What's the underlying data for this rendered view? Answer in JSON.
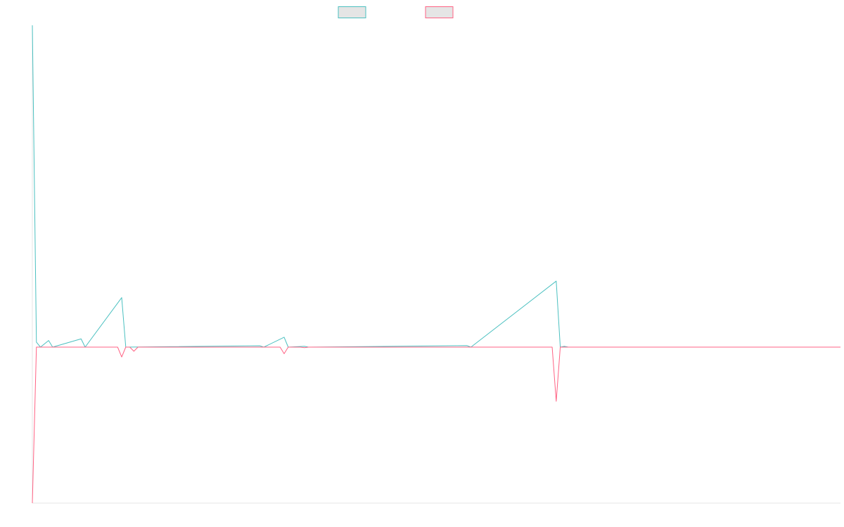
{
  "chart_data": {
    "type": "line",
    "title": "",
    "xlabel": "",
    "ylabel": "",
    "grid": false,
    "legend_position": "top-center",
    "x_count": 200,
    "ylim": [
      -9.5,
      19.5
    ],
    "series": [
      {
        "name": "",
        "color": "#4bc0c0",
        "fill": "#e5e5e5",
        "points": [
          [
            0,
            19.5
          ],
          [
            1,
            0.3
          ],
          [
            2,
            0
          ],
          [
            4,
            0.4
          ],
          [
            5,
            0
          ],
          [
            12,
            0.5
          ],
          [
            13,
            0
          ],
          [
            22,
            3.0
          ],
          [
            23,
            0
          ],
          [
            56,
            0.08
          ],
          [
            57,
            0
          ],
          [
            62,
            0.6
          ],
          [
            63,
            0
          ],
          [
            67,
            0.05
          ],
          [
            68,
            0
          ],
          [
            107,
            0.09
          ],
          [
            108,
            0
          ],
          [
            129,
            4.0
          ],
          [
            130,
            0
          ],
          [
            131,
            0.05
          ],
          [
            132,
            0
          ],
          [
            199,
            0
          ]
        ]
      },
      {
        "name": "",
        "color": "#ff6384",
        "fill": "#e5e5e5",
        "points": [
          [
            0,
            -9.5
          ],
          [
            1,
            0
          ],
          [
            21,
            0
          ],
          [
            22,
            -0.6
          ],
          [
            23,
            0
          ],
          [
            24,
            0
          ],
          [
            25,
            -0.25
          ],
          [
            26,
            0
          ],
          [
            61,
            0
          ],
          [
            62,
            -0.4
          ],
          [
            63,
            0
          ],
          [
            66,
            0
          ],
          [
            67,
            -0.03
          ],
          [
            68,
            0
          ],
          [
            128,
            0
          ],
          [
            129,
            -3.3
          ],
          [
            130,
            0
          ],
          [
            131,
            0
          ],
          [
            132,
            0
          ],
          [
            199,
            0
          ]
        ]
      }
    ]
  }
}
